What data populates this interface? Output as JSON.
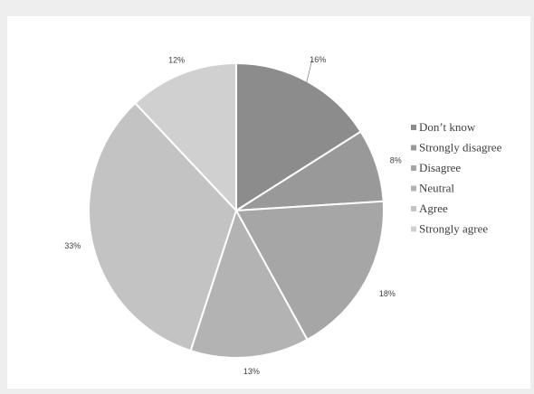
{
  "chart_data": {
    "type": "pie",
    "title": "",
    "categories": [
      "Don’t know",
      "Strongly disagree",
      "Disagree",
      "Neutral",
      "Agree",
      "Strongly agree"
    ],
    "values": [
      16,
      8,
      18,
      13,
      33,
      12
    ],
    "labels": [
      "16%",
      "8%",
      "18%",
      "13%",
      "33%",
      "12%"
    ],
    "colors": [
      "#8c8c8c",
      "#999999",
      "#a6a6a6",
      "#b3b3b3",
      "#c3c3c3",
      "#d0d0d0"
    ],
    "start_angle": "12 o'clock",
    "direction": "clockwise",
    "legend_position": "right",
    "grid": false
  }
}
